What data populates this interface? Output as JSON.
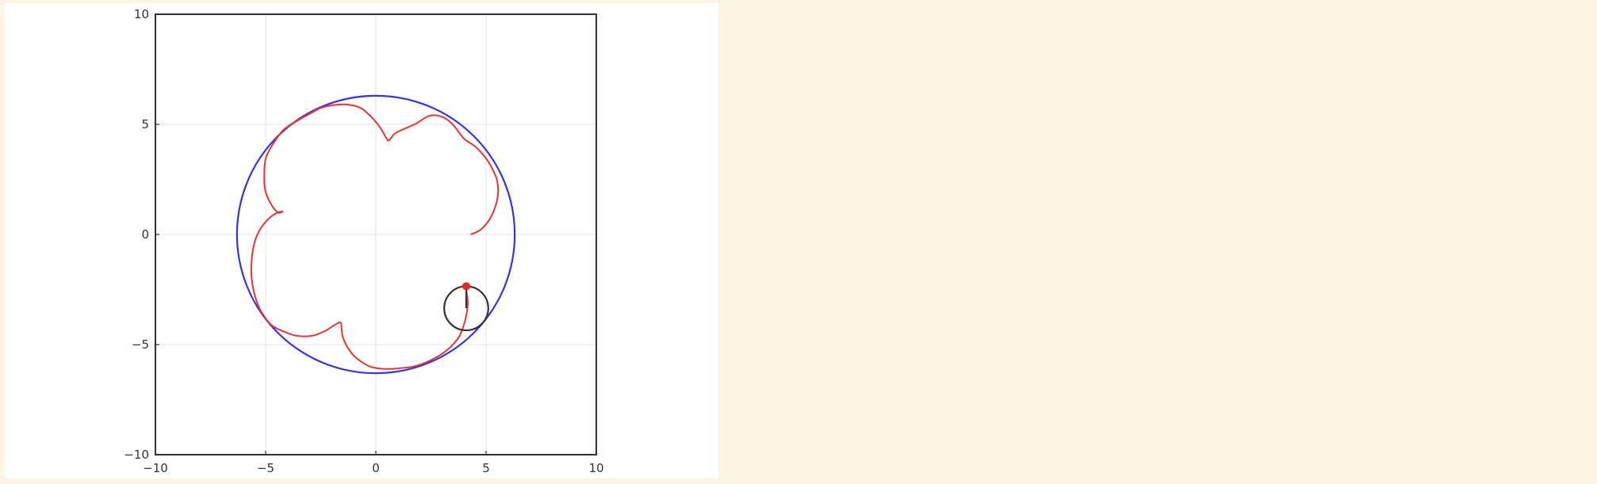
{
  "chart_data": {
    "type": "line",
    "title": "",
    "xlabel": "",
    "ylabel": "",
    "xlim": [
      -10,
      10
    ],
    "ylim": [
      -10,
      10
    ],
    "grid": true,
    "legend": "none",
    "x_ticks": [
      -10,
      -5,
      0,
      5,
      10
    ],
    "y_ticks": [
      -10,
      -5,
      0,
      5,
      10
    ],
    "x_tick_labels": [
      "−10",
      "−5",
      "0",
      "5",
      "10"
    ],
    "y_tick_labels": [
      "−10",
      "−5",
      "0",
      "5",
      "10"
    ],
    "fixed_circle": {
      "cx": 0,
      "cy": 0,
      "r": 6.3,
      "color": "#3333ee"
    },
    "rolling_circle": {
      "cx": 4.1,
      "cy": -3.35,
      "r": 1.0,
      "color": "#333333"
    },
    "tracing_point": {
      "x": 4.1,
      "y": -2.35,
      "color": "#ee2222"
    },
    "trace": {
      "color": "#ee3333",
      "x": [
        4.3,
        4.73,
        5.1,
        5.4,
        5.54,
        5.5,
        5.3,
        4.98,
        4.5,
        4.0,
        3.45,
        2.93,
        2.4,
        1.85,
        1.3,
        0.88,
        0.6,
        0.48,
        0.2,
        -0.17,
        -0.7,
        -1.3,
        -1.88,
        -2.48,
        -3.0,
        -3.5,
        -4.0,
        -4.4,
        -4.98,
        -5.06,
        -4.99,
        -4.82,
        -4.6,
        -4.4,
        -4.23,
        -4.55,
        -4.93,
        -5.3,
        -5.55,
        -5.65,
        -5.6,
        -5.45,
        -5.2,
        -4.75,
        -4.2,
        -3.6,
        -2.9,
        -2.3,
        -1.85,
        -1.6,
        -1.55,
        -1.5,
        -1.3,
        -1.0,
        -0.6,
        -0.2,
        0.3,
        0.8,
        1.3,
        1.7,
        2.1,
        2.55,
        3.0,
        3.45,
        3.8,
        4.05,
        4.17,
        4.1
      ],
      "y": [
        0.0,
        0.2,
        0.6,
        1.2,
        1.85,
        2.45,
        2.95,
        3.48,
        4.0,
        4.35,
        5.04,
        5.37,
        5.38,
        5.05,
        4.8,
        4.6,
        4.28,
        4.37,
        4.85,
        5.3,
        5.75,
        5.9,
        5.88,
        5.75,
        5.48,
        5.2,
        4.9,
        4.5,
        3.5,
        2.4,
        1.9,
        1.5,
        1.15,
        0.98,
        1.05,
        0.95,
        0.65,
        0.15,
        -0.55,
        -1.5,
        -2.25,
        -2.9,
        -3.5,
        -4.1,
        -4.4,
        -4.6,
        -4.6,
        -4.38,
        -4.1,
        -4.0,
        -4.3,
        -4.65,
        -5.1,
        -5.5,
        -5.82,
        -6.02,
        -6.1,
        -6.1,
        -6.05,
        -6.0,
        -5.88,
        -5.68,
        -5.42,
        -5.05,
        -4.6,
        -3.9,
        -3.15,
        -2.5
      ]
    }
  }
}
